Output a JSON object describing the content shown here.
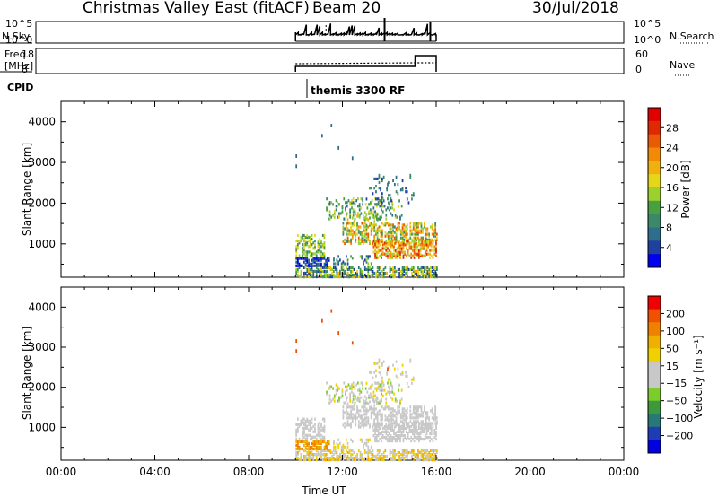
{
  "header": {
    "station": "Christmas Valley East (fitACF)",
    "beam": "Beam 20",
    "date": "30/Jul/2018"
  },
  "top_panel": {
    "left_label": "N.Sky",
    "left_ticks": [
      "10^5",
      "10^0"
    ],
    "right_ticks": [
      "10^5",
      "10^0"
    ],
    "right_label": "N.Search"
  },
  "freq_panel": {
    "left_label_1": "Freq.",
    "left_label_2": "[MHz]",
    "left_ticks": [
      "18",
      "8"
    ],
    "right_ticks": [
      "60",
      "0"
    ],
    "right_label": "Nave"
  },
  "cpid": {
    "label": "CPID",
    "program": "themis 3300 RF"
  },
  "chart_data": [
    {
      "type": "heatmap",
      "title": "",
      "quantity": "Power",
      "ylabel": "Slant Range [km]",
      "xlabel": "",
      "xlim_hours": [
        0,
        24
      ],
      "ylim_km": [
        180,
        4500
      ],
      "yticks": [
        "1000",
        "2000",
        "3000",
        "4000"
      ],
      "colorbar": {
        "label": "Power [dB]",
        "ticks": [
          "4",
          "8",
          "12",
          "16",
          "20",
          "24",
          "28"
        ],
        "colors": [
          "#0000f0",
          "#2040a0",
          "#2e6e8c",
          "#3a8a6a",
          "#4aa040",
          "#9bd02e",
          "#e6d61a",
          "#f0b010",
          "#f08a08",
          "#e85a04",
          "#e02802",
          "#e00000"
        ]
      },
      "data_window_hours": [
        10.0,
        16.0
      ]
    },
    {
      "type": "heatmap",
      "title": "",
      "quantity": "Velocity",
      "ylabel": "Slant Range [km]",
      "xlabel": "Time UT",
      "xlim_hours": [
        0,
        24
      ],
      "ylim_km": [
        180,
        4500
      ],
      "yticks": [
        "1000",
        "2000",
        "3000",
        "4000"
      ],
      "xticks": [
        "00:00",
        "04:00",
        "08:00",
        "12:00",
        "16:00",
        "20:00",
        "00:00"
      ],
      "colorbar": {
        "label": "Velocity [m s⁻¹]",
        "ticks": [
          "200",
          "100",
          "50",
          "15",
          "−15",
          "−50",
          "−100",
          "−200"
        ],
        "colors": [
          "#0000e0",
          "#1e3cb4",
          "#287878",
          "#3c9a3c",
          "#7ccc2c",
          "#c8c8c8",
          "#c8c8c8",
          "#f0d000",
          "#f0b000",
          "#f08000",
          "#f05000",
          "#f00000"
        ]
      },
      "data_window_hours": [
        10.0,
        16.0
      ]
    }
  ]
}
